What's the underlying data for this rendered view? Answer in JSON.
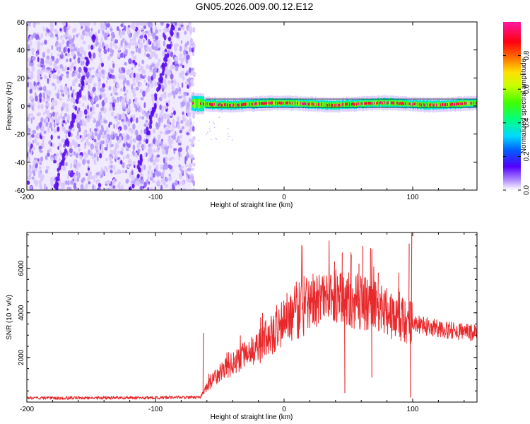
{
  "title": "GN05.2026.009.00.12.E12",
  "chart_data": [
    {
      "type": "heatmap",
      "name": "spectrogram",
      "xlabel": "Height of straight line (km)",
      "ylabel": "Frequency (Hz)",
      "xlim": [
        -200,
        150
      ],
      "ylim": [
        -60,
        60
      ],
      "xticks": [
        -200,
        -100,
        0,
        100
      ],
      "yticks": [
        -60,
        -40,
        -20,
        0,
        20,
        40,
        60
      ],
      "noise_region_x": [
        -200,
        -72
      ],
      "signal_start_x": -72,
      "signal_band_hz": [
        -3,
        5
      ],
      "signal_center_hz": 1.5,
      "diagonal_streaks": [
        {
          "x_top": -145,
          "x_bottom": -178
        },
        {
          "x_top": -85,
          "x_bottom": -117
        }
      ],
      "colorbar": {
        "label": "Normalized spectral amplitude",
        "range": [
          0,
          1
        ],
        "ticks": [
          0.0,
          0.2,
          0.4,
          0.6,
          0.8
        ]
      }
    },
    {
      "type": "line",
      "name": "snr",
      "xlabel": "Height of straight line (km)",
      "ylabel": "SNR (10 * v/v)",
      "xlim": [
        -200,
        150
      ],
      "ylim": [
        0,
        7600
      ],
      "xticks": [
        -200,
        -100,
        0,
        100
      ],
      "yticks": [
        2000,
        4000,
        6000
      ],
      "color": "#e8282b",
      "envelope": {
        "x": [
          -200,
          -100,
          -65,
          -60,
          -55,
          -50,
          -40,
          -30,
          -20,
          -10,
          0,
          10,
          20,
          30,
          40,
          50,
          60,
          70,
          80,
          90,
          100,
          110,
          120,
          130,
          150
        ],
        "y": [
          180,
          200,
          220,
          700,
          1000,
          1300,
          1700,
          2100,
          2500,
          3000,
          3700,
          4100,
          4500,
          4700,
          4700,
          4600,
          4500,
          4300,
          4000,
          3700,
          3500,
          3400,
          3300,
          3200,
          3100
        ]
      },
      "spikes": [
        {
          "x": -63,
          "y": 3100
        },
        {
          "x": 39,
          "y": 6300
        },
        {
          "x": 45,
          "y": 6700
        },
        {
          "x": 47,
          "y": 400
        },
        {
          "x": 52,
          "y": 6600
        },
        {
          "x": 58,
          "y": 6200
        },
        {
          "x": 61,
          "y": 7000
        },
        {
          "x": 67,
          "y": 6900
        },
        {
          "x": 73,
          "y": 5800
        },
        {
          "x": 89,
          "y": 5800
        },
        {
          "x": 97,
          "y": 7100
        },
        {
          "x": 99,
          "y": 7600
        },
        {
          "x": 98,
          "y": 200
        },
        {
          "x": 68,
          "y": 1100
        }
      ]
    }
  ]
}
